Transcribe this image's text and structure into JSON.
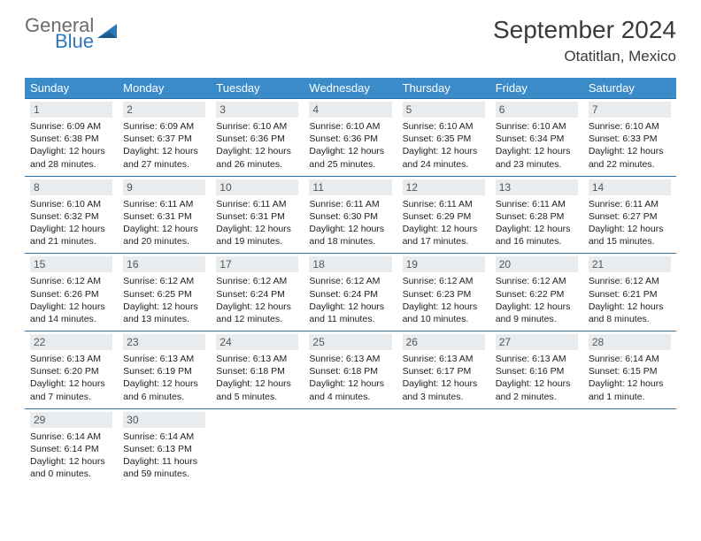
{
  "brand": {
    "general": "General",
    "blue": "Blue"
  },
  "title": "September 2024",
  "location": "Otatitlan, Mexico",
  "colors": {
    "header_bg": "#3b8bc9",
    "header_fg": "#ffffff",
    "daynum_bg": "#e9ecef",
    "rule": "#2f6fa8",
    "brand_gray": "#6b6b6b",
    "brand_blue": "#2f77bb",
    "text": "#222222",
    "background": "#ffffff"
  },
  "typography": {
    "title_fontsize": 28,
    "location_fontsize": 17,
    "weekday_fontsize": 13,
    "daynum_fontsize": 12,
    "detail_fontsize": 10.5
  },
  "weekdays": [
    "Sunday",
    "Monday",
    "Tuesday",
    "Wednesday",
    "Thursday",
    "Friday",
    "Saturday"
  ],
  "days": [
    {
      "n": "1",
      "sunrise": "6:09 AM",
      "sunset": "6:38 PM",
      "daylight": "12 hours and 28 minutes."
    },
    {
      "n": "2",
      "sunrise": "6:09 AM",
      "sunset": "6:37 PM",
      "daylight": "12 hours and 27 minutes."
    },
    {
      "n": "3",
      "sunrise": "6:10 AM",
      "sunset": "6:36 PM",
      "daylight": "12 hours and 26 minutes."
    },
    {
      "n": "4",
      "sunrise": "6:10 AM",
      "sunset": "6:36 PM",
      "daylight": "12 hours and 25 minutes."
    },
    {
      "n": "5",
      "sunrise": "6:10 AM",
      "sunset": "6:35 PM",
      "daylight": "12 hours and 24 minutes."
    },
    {
      "n": "6",
      "sunrise": "6:10 AM",
      "sunset": "6:34 PM",
      "daylight": "12 hours and 23 minutes."
    },
    {
      "n": "7",
      "sunrise": "6:10 AM",
      "sunset": "6:33 PM",
      "daylight": "12 hours and 22 minutes."
    },
    {
      "n": "8",
      "sunrise": "6:10 AM",
      "sunset": "6:32 PM",
      "daylight": "12 hours and 21 minutes."
    },
    {
      "n": "9",
      "sunrise": "6:11 AM",
      "sunset": "6:31 PM",
      "daylight": "12 hours and 20 minutes."
    },
    {
      "n": "10",
      "sunrise": "6:11 AM",
      "sunset": "6:31 PM",
      "daylight": "12 hours and 19 minutes."
    },
    {
      "n": "11",
      "sunrise": "6:11 AM",
      "sunset": "6:30 PM",
      "daylight": "12 hours and 18 minutes."
    },
    {
      "n": "12",
      "sunrise": "6:11 AM",
      "sunset": "6:29 PM",
      "daylight": "12 hours and 17 minutes."
    },
    {
      "n": "13",
      "sunrise": "6:11 AM",
      "sunset": "6:28 PM",
      "daylight": "12 hours and 16 minutes."
    },
    {
      "n": "14",
      "sunrise": "6:11 AM",
      "sunset": "6:27 PM",
      "daylight": "12 hours and 15 minutes."
    },
    {
      "n": "15",
      "sunrise": "6:12 AM",
      "sunset": "6:26 PM",
      "daylight": "12 hours and 14 minutes."
    },
    {
      "n": "16",
      "sunrise": "6:12 AM",
      "sunset": "6:25 PM",
      "daylight": "12 hours and 13 minutes."
    },
    {
      "n": "17",
      "sunrise": "6:12 AM",
      "sunset": "6:24 PM",
      "daylight": "12 hours and 12 minutes."
    },
    {
      "n": "18",
      "sunrise": "6:12 AM",
      "sunset": "6:24 PM",
      "daylight": "12 hours and 11 minutes."
    },
    {
      "n": "19",
      "sunrise": "6:12 AM",
      "sunset": "6:23 PM",
      "daylight": "12 hours and 10 minutes."
    },
    {
      "n": "20",
      "sunrise": "6:12 AM",
      "sunset": "6:22 PM",
      "daylight": "12 hours and 9 minutes."
    },
    {
      "n": "21",
      "sunrise": "6:12 AM",
      "sunset": "6:21 PM",
      "daylight": "12 hours and 8 minutes."
    },
    {
      "n": "22",
      "sunrise": "6:13 AM",
      "sunset": "6:20 PM",
      "daylight": "12 hours and 7 minutes."
    },
    {
      "n": "23",
      "sunrise": "6:13 AM",
      "sunset": "6:19 PM",
      "daylight": "12 hours and 6 minutes."
    },
    {
      "n": "24",
      "sunrise": "6:13 AM",
      "sunset": "6:18 PM",
      "daylight": "12 hours and 5 minutes."
    },
    {
      "n": "25",
      "sunrise": "6:13 AM",
      "sunset": "6:18 PM",
      "daylight": "12 hours and 4 minutes."
    },
    {
      "n": "26",
      "sunrise": "6:13 AM",
      "sunset": "6:17 PM",
      "daylight": "12 hours and 3 minutes."
    },
    {
      "n": "27",
      "sunrise": "6:13 AM",
      "sunset": "6:16 PM",
      "daylight": "12 hours and 2 minutes."
    },
    {
      "n": "28",
      "sunrise": "6:14 AM",
      "sunset": "6:15 PM",
      "daylight": "12 hours and 1 minute."
    },
    {
      "n": "29",
      "sunrise": "6:14 AM",
      "sunset": "6:14 PM",
      "daylight": "12 hours and 0 minutes."
    },
    {
      "n": "30",
      "sunrise": "6:14 AM",
      "sunset": "6:13 PM",
      "daylight": "11 hours and 59 minutes."
    }
  ],
  "labels": {
    "sunrise": "Sunrise:",
    "sunset": "Sunset:",
    "daylight": "Daylight:"
  }
}
